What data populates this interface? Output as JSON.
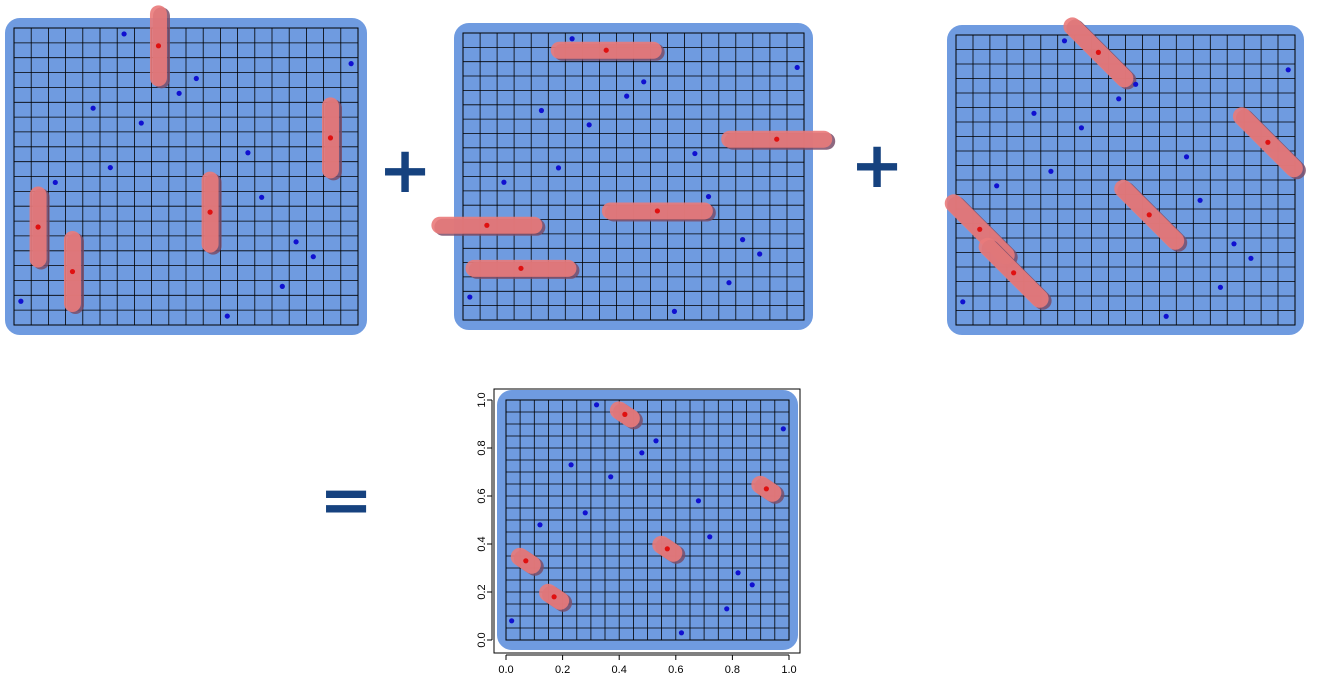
{
  "operators": {
    "plus_1": "+",
    "plus_2": "+",
    "equals": "="
  },
  "colors": {
    "mask_blue": "#6f9be0",
    "brush_red": "#ea7b7b",
    "brush_dark": "#7a4e6a",
    "point_blue": "#1010d0",
    "point_red": "#e01010",
    "grid_line": "#000000",
    "operator": "#16427f"
  },
  "chart_data": {
    "type": "scatter",
    "title": "",
    "xlabel": "",
    "ylabel": "",
    "xlim": [
      0,
      1
    ],
    "ylim": [
      0,
      1
    ],
    "grid": true,
    "grid_divisions": 20,
    "x_ticks": [
      "0.0",
      "0.2",
      "0.4",
      "0.6",
      "0.8",
      "1.0"
    ],
    "y_ticks": [
      "0.0",
      "0.2",
      "0.4",
      "0.6",
      "0.8",
      "1.0"
    ],
    "blue_points": [
      [
        0.32,
        0.98
      ],
      [
        0.98,
        0.88
      ],
      [
        0.53,
        0.83
      ],
      [
        0.48,
        0.78
      ],
      [
        0.23,
        0.73
      ],
      [
        0.37,
        0.68
      ],
      [
        0.68,
        0.58
      ],
      [
        0.28,
        0.53
      ],
      [
        0.12,
        0.48
      ],
      [
        0.72,
        0.43
      ],
      [
        0.82,
        0.28
      ],
      [
        0.87,
        0.23
      ],
      [
        0.78,
        0.13
      ],
      [
        0.02,
        0.08
      ],
      [
        0.62,
        0.03
      ]
    ],
    "red_points": [
      [
        0.42,
        0.94
      ],
      [
        0.92,
        0.63
      ],
      [
        0.57,
        0.38
      ],
      [
        0.07,
        0.33
      ],
      [
        0.17,
        0.18
      ]
    ]
  }
}
